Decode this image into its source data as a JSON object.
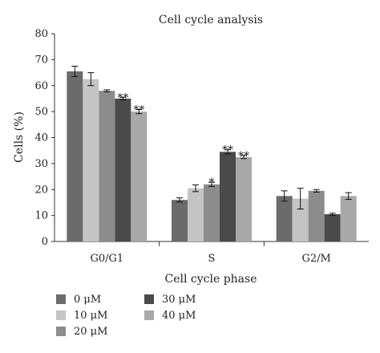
{
  "chart_data": {
    "type": "bar",
    "title": "Cell cycle analysis",
    "xlabel": "Cell cycle phase",
    "ylabel": "Cells (%)",
    "ylim": [
      0,
      80
    ],
    "yticks": [
      "0",
      "10",
      "20",
      "30",
      "40",
      "50",
      "60",
      "70",
      "80"
    ],
    "categories": [
      "G0/G1",
      "S",
      "G2/M"
    ],
    "grid": false,
    "legend_position": "bottom-left",
    "series": [
      {
        "name": "0 μM",
        "color": "#6b6b6b",
        "values": [
          65.5,
          16.0,
          17.5
        ],
        "errors": [
          2.0,
          0.8,
          2.0
        ],
        "annotations": [
          "",
          "",
          ""
        ]
      },
      {
        "name": "10 μM",
        "color": "#c4c4c4",
        "values": [
          62.5,
          20.5,
          16.5
        ],
        "errors": [
          2.5,
          1.3,
          4.0
        ],
        "annotations": [
          "",
          "",
          ""
        ]
      },
      {
        "name": "20 μM",
        "color": "#8c8c8c",
        "values": [
          58.0,
          22.0,
          19.5
        ],
        "errors": [
          0.4,
          0.8,
          0.5
        ],
        "annotations": [
          "",
          "*",
          ""
        ]
      },
      {
        "name": "30 μM",
        "color": "#4a4a4a",
        "values": [
          55.0,
          34.5,
          10.5
        ],
        "errors": [
          0.5,
          0.8,
          0.4
        ],
        "annotations": [
          "**",
          "**",
          ""
        ]
      },
      {
        "name": "40 μM",
        "color": "#a8a8a8",
        "values": [
          50.0,
          32.5,
          17.5
        ],
        "errors": [
          0.8,
          0.6,
          1.3
        ],
        "annotations": [
          "**",
          "**",
          ""
        ]
      }
    ]
  }
}
